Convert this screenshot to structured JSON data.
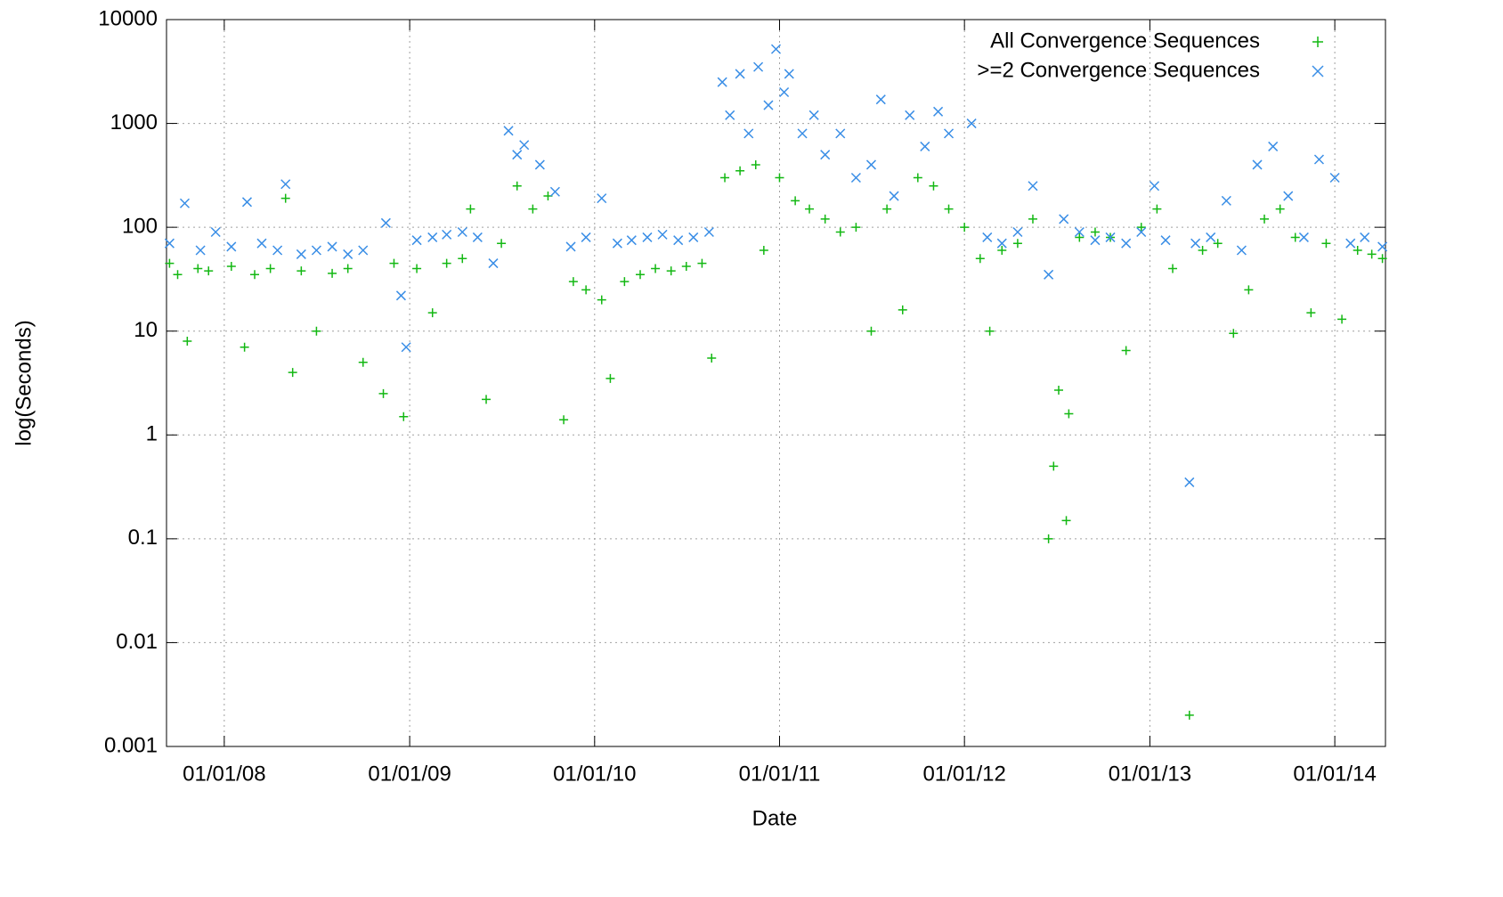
{
  "chart_data": {
    "type": "scatter",
    "x_label": "Date",
    "y_label": "log(Seconds)",
    "yscale": "log",
    "grid": true,
    "legend": "top-right",
    "xlim": [
      "2007-09-09",
      "2014-04-11"
    ],
    "xticks": [
      {
        "value": "2008-01-01",
        "label": "01/01/08"
      },
      {
        "value": "2009-01-01",
        "label": "01/01/09"
      },
      {
        "value": "2010-01-01",
        "label": "01/01/10"
      },
      {
        "value": "2011-01-01",
        "label": "01/01/11"
      },
      {
        "value": "2012-01-01",
        "label": "01/01/12"
      },
      {
        "value": "2013-01-01",
        "label": "01/01/13"
      },
      {
        "value": "2014-01-01",
        "label": "01/01/14"
      }
    ],
    "ylim": [
      0.001,
      10000
    ],
    "yticks": [
      0.001,
      0.01,
      0.1,
      1,
      10,
      100,
      1000,
      10000
    ],
    "series": [
      {
        "name": "All Convergence Sequences",
        "color": "#13b813",
        "marker": "plus",
        "x": [
          "2007-09-15",
          "2007-10-01",
          "2007-10-20",
          "2007-11-10",
          "2007-12-01",
          "2008-01-15",
          "2008-02-10",
          "2008-03-01",
          "2008-04-01",
          "2008-05-01",
          "2008-05-15",
          "2008-06-01",
          "2008-07-01",
          "2008-08-01",
          "2008-09-01",
          "2008-10-01",
          "2008-11-10",
          "2008-12-01",
          "2008-12-20",
          "2009-01-15",
          "2009-02-15",
          "2009-03-15",
          "2009-04-15",
          "2009-05-01",
          "2009-06-01",
          "2009-07-01",
          "2009-08-01",
          "2009-09-01",
          "2009-10-01",
          "2009-11-01",
          "2009-11-20",
          "2009-12-15",
          "2010-01-15",
          "2010-02-01",
          "2010-03-01",
          "2010-04-01",
          "2010-05-01",
          "2010-06-01",
          "2010-07-01",
          "2010-08-01",
          "2010-08-20",
          "2010-09-15",
          "2010-10-15",
          "2010-11-15",
          "2010-12-01",
          "2011-01-01",
          "2011-02-01",
          "2011-03-01",
          "2011-04-01",
          "2011-05-01",
          "2011-06-01",
          "2011-07-01",
          "2011-08-01",
          "2011-09-01",
          "2011-10-01",
          "2011-11-01",
          "2011-12-01",
          "2012-01-01",
          "2012-02-01",
          "2012-02-20",
          "2012-03-15",
          "2012-04-15",
          "2012-05-15",
          "2012-06-15",
          "2012-06-25",
          "2012-07-05",
          "2012-07-20",
          "2012-07-25",
          "2012-08-15",
          "2012-09-15",
          "2012-10-15",
          "2012-11-15",
          "2012-12-15",
          "2013-01-15",
          "2013-02-15",
          "2013-03-20",
          "2013-04-15",
          "2013-05-15",
          "2013-06-15",
          "2013-07-15",
          "2013-08-15",
          "2013-09-15",
          "2013-10-15",
          "2013-11-15",
          "2013-12-15",
          "2014-01-15",
          "2014-02-15",
          "2014-03-15",
          "2014-04-05"
        ],
        "values": [
          45,
          35,
          8,
          40,
          38,
          42,
          7,
          35,
          40,
          190,
          4,
          38,
          10,
          36,
          40,
          5,
          2.5,
          45,
          1.5,
          40,
          15,
          45,
          50,
          150,
          2.2,
          70,
          250,
          150,
          200,
          1.4,
          30,
          25,
          20,
          3.5,
          30,
          35,
          40,
          38,
          42,
          45,
          5.5,
          300,
          350,
          400,
          60,
          300,
          180,
          150,
          120,
          90,
          100,
          10,
          150,
          16,
          300,
          250,
          150,
          100,
          50,
          10,
          60,
          70,
          120,
          0.1,
          0.5,
          2.7,
          0.15,
          1.6,
          80,
          90,
          80,
          6.5,
          100,
          150,
          40,
          0.002,
          60,
          70,
          9.5,
          25,
          120,
          150,
          80,
          15,
          70,
          13,
          60,
          55,
          50
        ]
      },
      {
        "name": ">=2 Convergence Sequences",
        "color": "#3a8ee6",
        "marker": "cross",
        "x": [
          "2007-09-15",
          "2007-10-15",
          "2007-11-15",
          "2007-12-15",
          "2008-01-15",
          "2008-02-15",
          "2008-03-15",
          "2008-04-15",
          "2008-05-01",
          "2008-06-01",
          "2008-07-01",
          "2008-08-01",
          "2008-09-01",
          "2008-10-01",
          "2008-11-15",
          "2008-12-15",
          "2008-12-25",
          "2009-01-15",
          "2009-02-15",
          "2009-03-15",
          "2009-04-15",
          "2009-05-15",
          "2009-06-15",
          "2009-07-15",
          "2009-08-01",
          "2009-08-15",
          "2009-09-15",
          "2009-10-15",
          "2009-11-15",
          "2009-12-15",
          "2010-01-15",
          "2010-02-15",
          "2010-03-15",
          "2010-04-15",
          "2010-05-15",
          "2010-06-15",
          "2010-07-15",
          "2010-08-15",
          "2010-09-10",
          "2010-09-25",
          "2010-10-15",
          "2010-11-01",
          "2010-11-20",
          "2010-12-10",
          "2010-12-25",
          "2011-01-10",
          "2011-01-20",
          "2011-02-15",
          "2011-03-10",
          "2011-04-01",
          "2011-05-01",
          "2011-06-01",
          "2011-07-01",
          "2011-07-20",
          "2011-08-15",
          "2011-09-15",
          "2011-10-15",
          "2011-11-10",
          "2011-12-01",
          "2012-01-15",
          "2012-02-15",
          "2012-03-15",
          "2012-04-15",
          "2012-05-15",
          "2012-06-15",
          "2012-07-15",
          "2012-08-15",
          "2012-09-15",
          "2012-10-15",
          "2012-11-15",
          "2012-12-15",
          "2013-01-10",
          "2013-02-01",
          "2013-03-20",
          "2013-04-01",
          "2013-05-01",
          "2013-06-01",
          "2013-07-01",
          "2013-08-01",
          "2013-09-01",
          "2013-10-01",
          "2013-11-01",
          "2013-12-01",
          "2014-01-01",
          "2014-02-01",
          "2014-03-01",
          "2014-04-05"
        ],
        "values": [
          70,
          170,
          60,
          90,
          65,
          175,
          70,
          60,
          260,
          55,
          60,
          65,
          55,
          60,
          110,
          22,
          7,
          75,
          80,
          85,
          90,
          80,
          45,
          850,
          500,
          620,
          400,
          220,
          65,
          80,
          190,
          70,
          75,
          80,
          85,
          75,
          80,
          90,
          2500,
          1200,
          3000,
          800,
          3500,
          1500,
          5200,
          2000,
          3000,
          800,
          1200,
          500,
          800,
          300,
          400,
          1700,
          200,
          1200,
          600,
          1300,
          800,
          1000,
          80,
          70,
          90,
          250,
          35,
          120,
          90,
          75,
          80,
          70,
          90,
          250,
          75,
          0.35,
          70,
          80,
          180,
          60,
          400,
          600,
          200,
          80,
          450,
          300,
          70,
          80,
          65
        ]
      }
    ]
  }
}
